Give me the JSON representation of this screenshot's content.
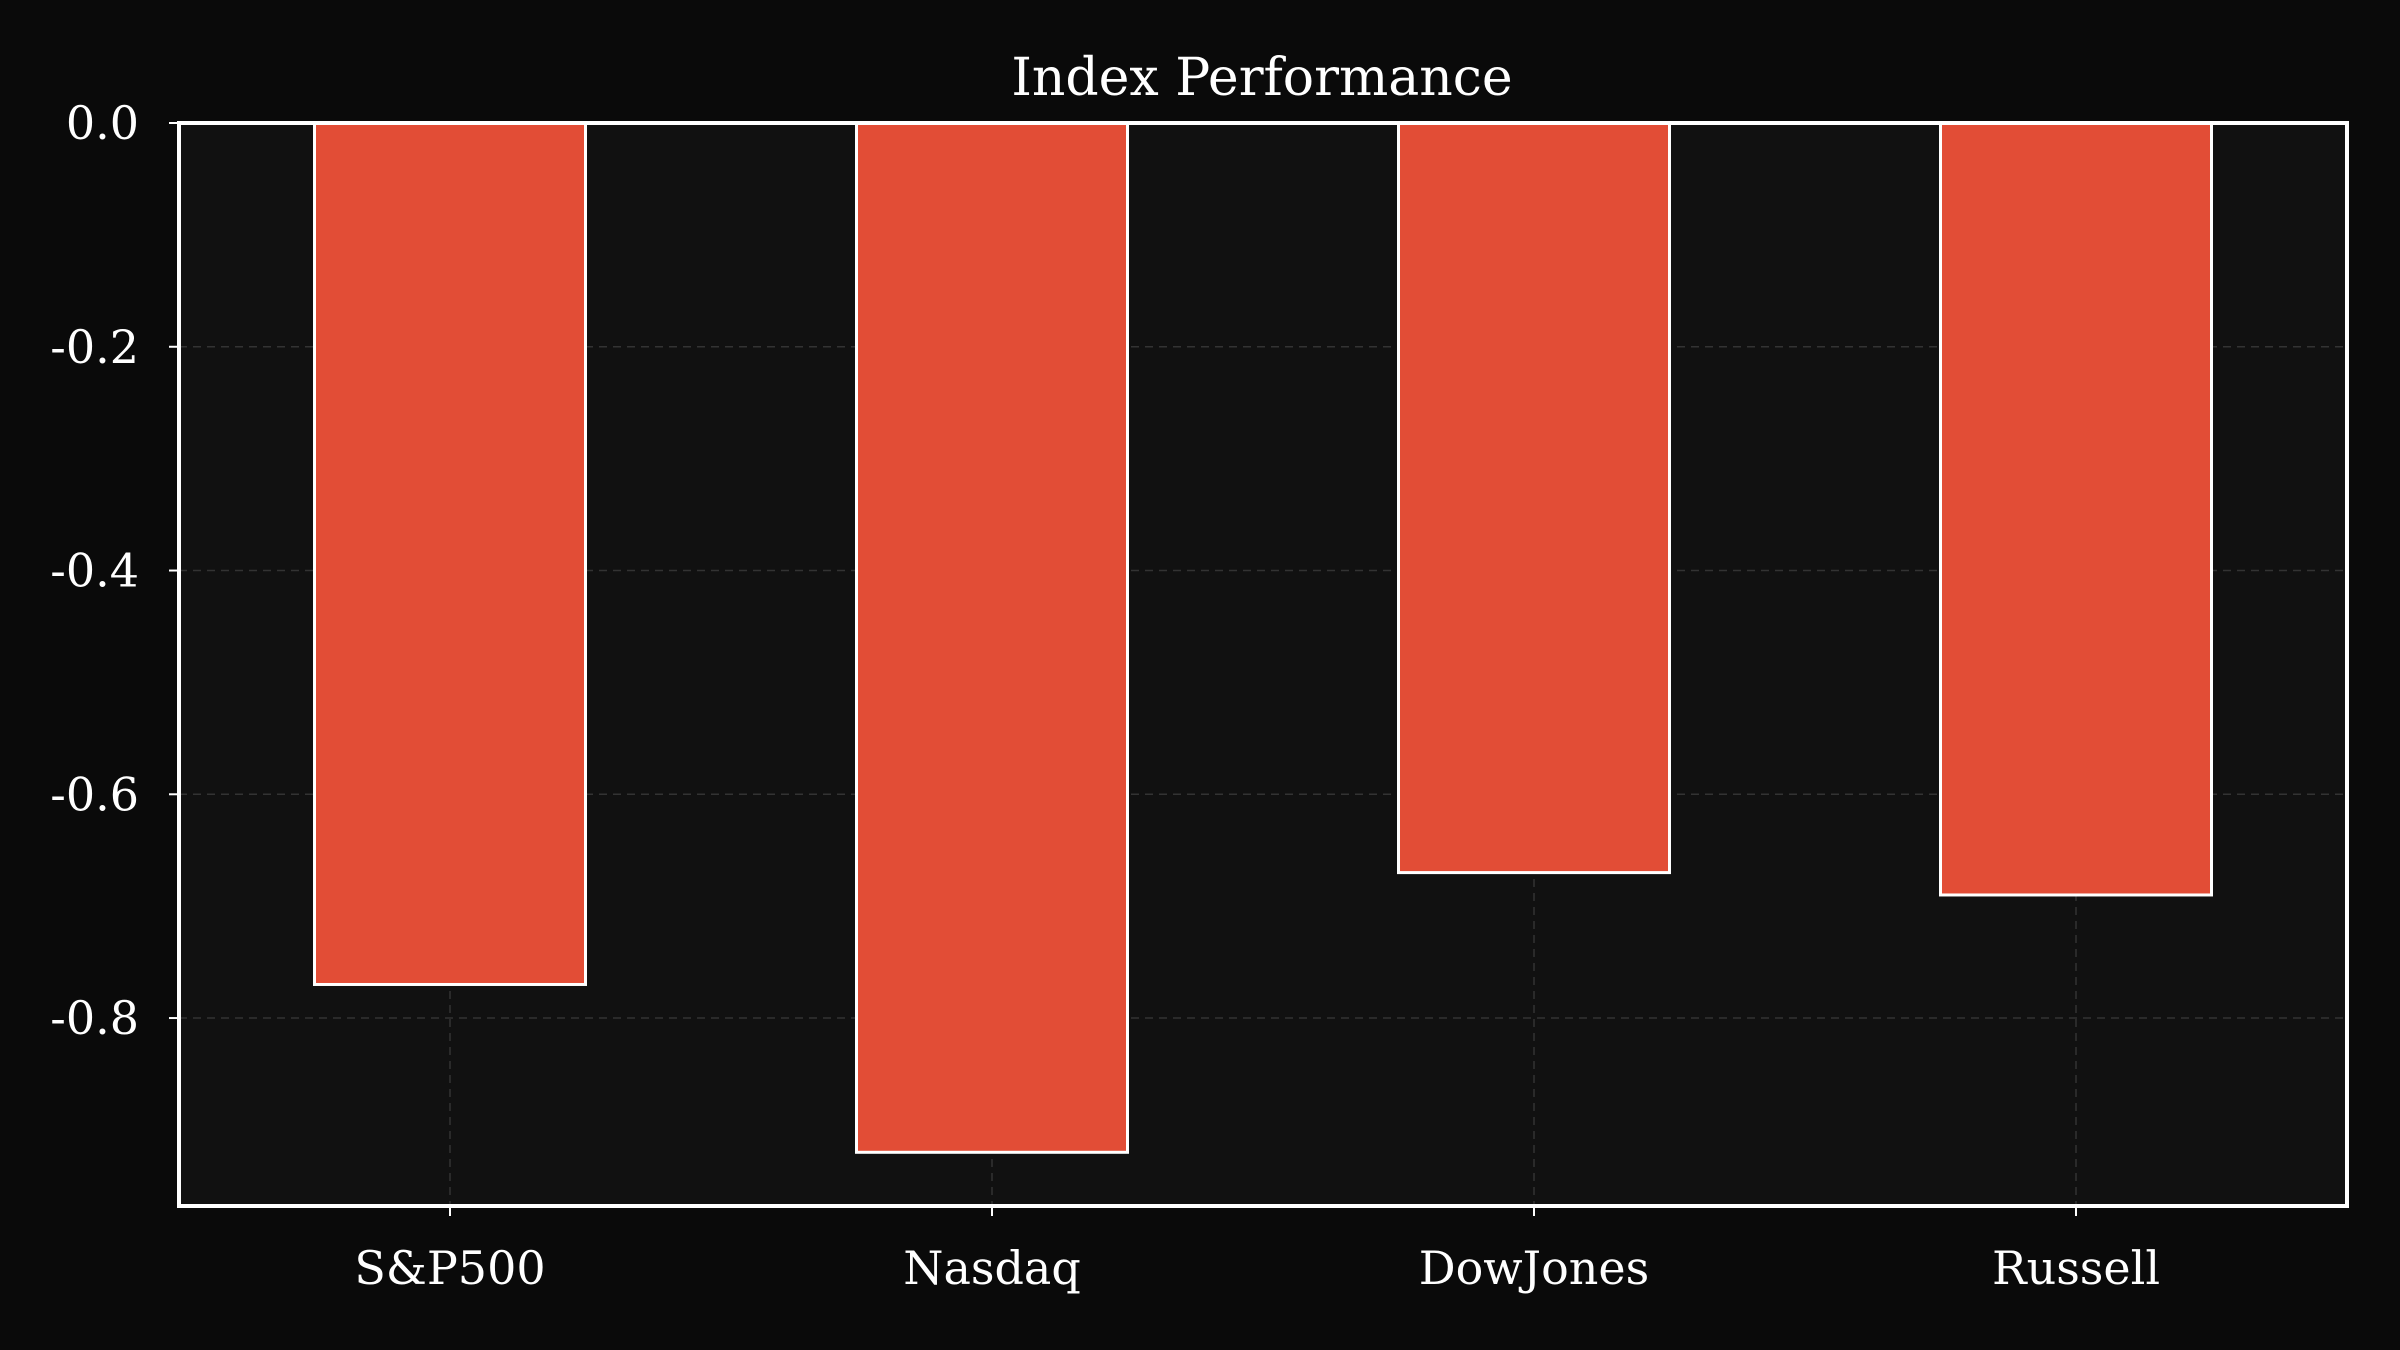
{
  "colors": {
    "page_background": "#0a0a0a",
    "plot_background": "#111111",
    "bar_fill": "#e24d36",
    "bar_edge": "#ffffff",
    "axes": "#ffffff",
    "grid": "#333333",
    "text": "#ffffff"
  },
  "chart_data": {
    "type": "bar",
    "title": "Index Performance",
    "xlabel": "",
    "ylabel": "",
    "categories": [
      "S&P500",
      "Nasdaq",
      "DowJones",
      "Russell"
    ],
    "values": [
      -0.77,
      -0.92,
      -0.67,
      -0.69
    ],
    "ylim": [
      -0.968,
      0.0
    ],
    "yticks": [
      0.0,
      -0.2,
      -0.4,
      -0.6,
      -0.8
    ],
    "ytick_labels": [
      "0.0",
      "-0.2",
      "-0.4",
      "-0.6",
      "-0.8"
    ],
    "grid": true,
    "grid_style": "dashed",
    "legend": "none"
  }
}
